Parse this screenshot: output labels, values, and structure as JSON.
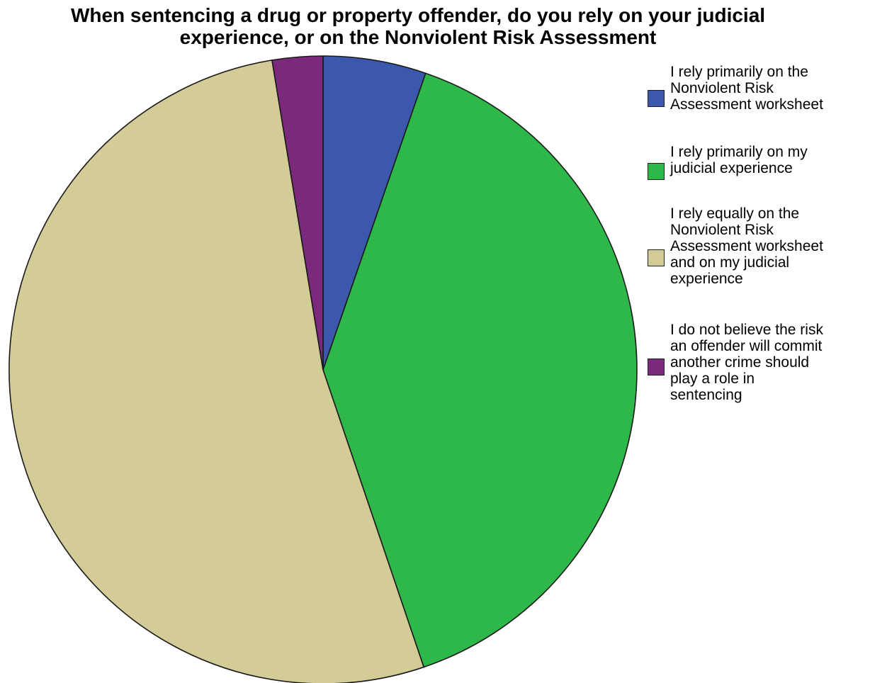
{
  "chart_data": {
    "type": "pie",
    "title_lines": [
      "When sentencing a drug or property offender, do you rely on your judicial",
      "experience, or on the Nonviolent Risk Assessment"
    ],
    "start_angle_deg": 0,
    "direction": "clockwise",
    "slices": [
      {
        "label": "I rely primarily on the Nonviolent Risk Assessment worksheet",
        "label_lines": "I rely primarily on the\nNonviolent Risk\nAssessment worksheet",
        "value": 5.3,
        "color": "#3b58ad"
      },
      {
        "label": "I rely primarily on my judicial experience",
        "label_lines": "I rely primarily on my\njudicial experience",
        "value": 39.5,
        "color": "#2fb84a"
      },
      {
        "label": "I rely equally on the Nonviolent Risk Assessment worksheet and on my judicial experience",
        "label_lines": "I rely equally on the\nNonviolent Risk\nAssessment worksheet\nand on my judicial\nexperience",
        "value": 52.6,
        "color": "#d3cc96"
      },
      {
        "label": "I do not believe the risk an offender will commit another crime should play a role in sentencing",
        "label_lines": "I do not believe the risk\nan offender will commit\nanother crime should\nplay a role in\nsentencing",
        "value": 2.6,
        "color": "#7b2a7b"
      }
    ],
    "legend_position": "right"
  }
}
